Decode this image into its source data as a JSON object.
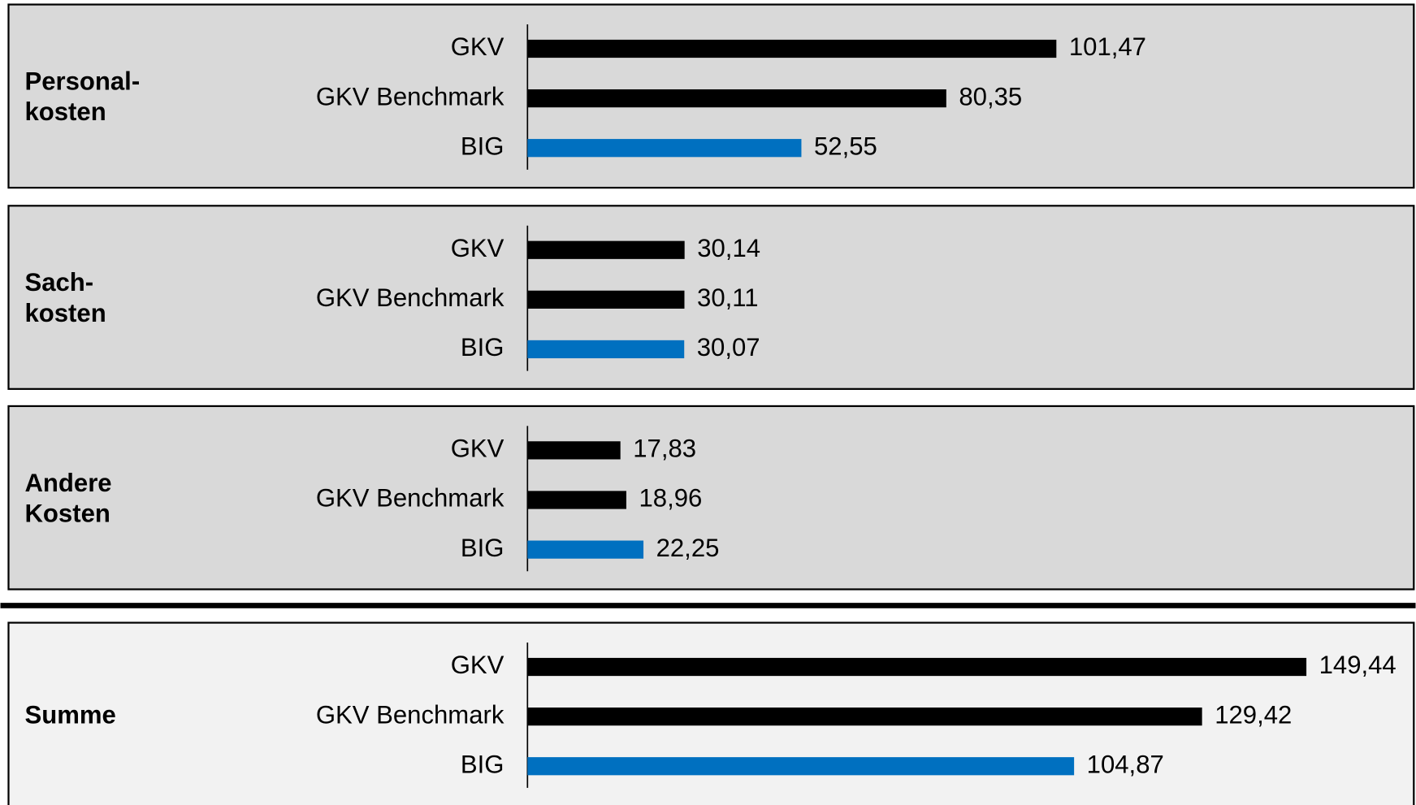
{
  "chart_data": [
    {
      "type": "barh",
      "title": [
        "Personal-",
        "kosten"
      ],
      "categories": [
        "GKV",
        "GKV Benchmark",
        "BIG"
      ],
      "values": [
        101.47,
        80.35,
        52.55
      ],
      "value_labels": [
        "101,47",
        "80,35",
        "52,55"
      ],
      "colors": [
        "#000000",
        "#000000",
        "#0070c0"
      ],
      "background": "#d9d9d9"
    },
    {
      "type": "barh",
      "title": [
        "Sach-",
        "kosten"
      ],
      "categories": [
        "GKV",
        "GKV Benchmark",
        "BIG"
      ],
      "values": [
        30.14,
        30.11,
        30.07
      ],
      "value_labels": [
        "30,14",
        "30,11",
        "30,07"
      ],
      "colors": [
        "#000000",
        "#000000",
        "#0070c0"
      ],
      "background": "#d9d9d9"
    },
    {
      "type": "barh",
      "title": [
        "Andere",
        "Kosten"
      ],
      "categories": [
        "GKV",
        "GKV Benchmark",
        "BIG"
      ],
      "values": [
        17.83,
        18.96,
        22.25
      ],
      "value_labels": [
        "17,83",
        "18,96",
        "22,25"
      ],
      "colors": [
        "#000000",
        "#000000",
        "#0070c0"
      ],
      "background": "#d9d9d9"
    },
    {
      "type": "barh",
      "title": [
        "Summe"
      ],
      "categories": [
        "GKV",
        "GKV Benchmark",
        "BIG"
      ],
      "values": [
        149.44,
        129.42,
        104.87
      ],
      "value_labels": [
        "149,44",
        "129,42",
        "104,87"
      ],
      "colors": [
        "#000000",
        "#000000",
        "#0070c0"
      ],
      "background": "#f2f2f2"
    }
  ]
}
